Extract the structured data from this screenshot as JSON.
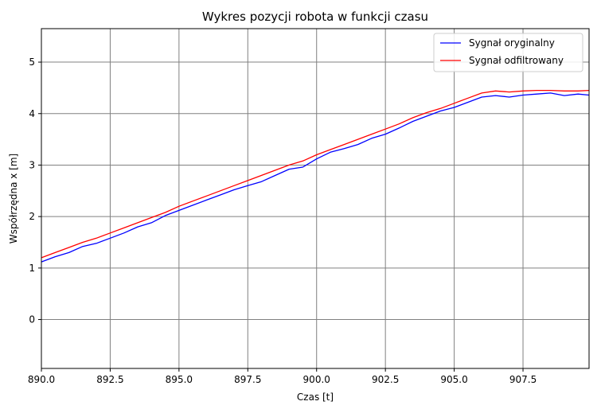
{
  "chart_data": {
    "type": "line",
    "title": "Wykres pozycji robota w funkcji czasu",
    "xlabel": "Czas [t]",
    "ylabel": "Współrzędna x [m]",
    "xlim": [
      890.0,
      909.9
    ],
    "ylim": [
      -0.95,
      5.65
    ],
    "xticks": [
      890.0,
      892.5,
      895.0,
      897.5,
      900.0,
      902.5,
      905.0,
      907.5
    ],
    "xtick_labels": [
      "890.0",
      "892.5",
      "895.0",
      "897.5",
      "900.0",
      "902.5",
      "905.0",
      "907.5"
    ],
    "yticks": [
      0,
      1,
      2,
      3,
      4,
      5
    ],
    "ytick_labels": [
      "0",
      "1",
      "2",
      "3",
      "4",
      "5"
    ],
    "grid": true,
    "legend_position": "top-right",
    "series": [
      {
        "name": "Sygnał oryginalny",
        "color": "#0000ff",
        "x": [
          890.0,
          890.5,
          891.0,
          891.5,
          892.0,
          892.5,
          893.0,
          893.5,
          894.0,
          894.5,
          895.0,
          895.5,
          896.0,
          896.5,
          897.0,
          897.5,
          898.0,
          898.5,
          899.0,
          899.5,
          900.0,
          900.5,
          901.0,
          901.5,
          902.0,
          902.5,
          903.0,
          903.5,
          904.0,
          904.5,
          905.0,
          905.5,
          906.0,
          906.5,
          907.0,
          907.5,
          908.0,
          908.5,
          909.0,
          909.5,
          909.9
        ],
        "y": [
          1.12,
          1.22,
          1.3,
          1.42,
          1.48,
          1.58,
          1.68,
          1.8,
          1.88,
          2.02,
          2.12,
          2.22,
          2.32,
          2.42,
          2.52,
          2.6,
          2.68,
          2.8,
          2.92,
          2.96,
          3.12,
          3.25,
          3.32,
          3.4,
          3.52,
          3.6,
          3.72,
          3.85,
          3.95,
          4.05,
          4.12,
          4.22,
          4.32,
          4.35,
          4.32,
          4.36,
          4.38,
          4.4,
          4.35,
          4.38,
          4.36
        ]
      },
      {
        "name": "Sygnał odfiltrowany",
        "color": "#ff0000",
        "x": [
          890.0,
          890.5,
          891.0,
          891.5,
          892.0,
          892.5,
          893.0,
          893.5,
          894.0,
          894.5,
          895.0,
          895.5,
          896.0,
          896.5,
          897.0,
          897.5,
          898.0,
          898.5,
          899.0,
          899.5,
          900.0,
          900.5,
          901.0,
          901.5,
          902.0,
          902.5,
          903.0,
          903.5,
          904.0,
          904.5,
          905.0,
          905.5,
          906.0,
          906.5,
          907.0,
          907.5,
          908.0,
          908.5,
          909.0,
          909.5,
          909.9
        ],
        "y": [
          1.2,
          1.3,
          1.4,
          1.5,
          1.58,
          1.68,
          1.78,
          1.88,
          1.98,
          2.08,
          2.2,
          2.3,
          2.4,
          2.5,
          2.6,
          2.7,
          2.8,
          2.9,
          3.0,
          3.08,
          3.2,
          3.3,
          3.4,
          3.5,
          3.6,
          3.7,
          3.8,
          3.92,
          4.02,
          4.1,
          4.2,
          4.3,
          4.4,
          4.44,
          4.42,
          4.44,
          4.45,
          4.45,
          4.44,
          4.44,
          4.45
        ]
      }
    ]
  }
}
